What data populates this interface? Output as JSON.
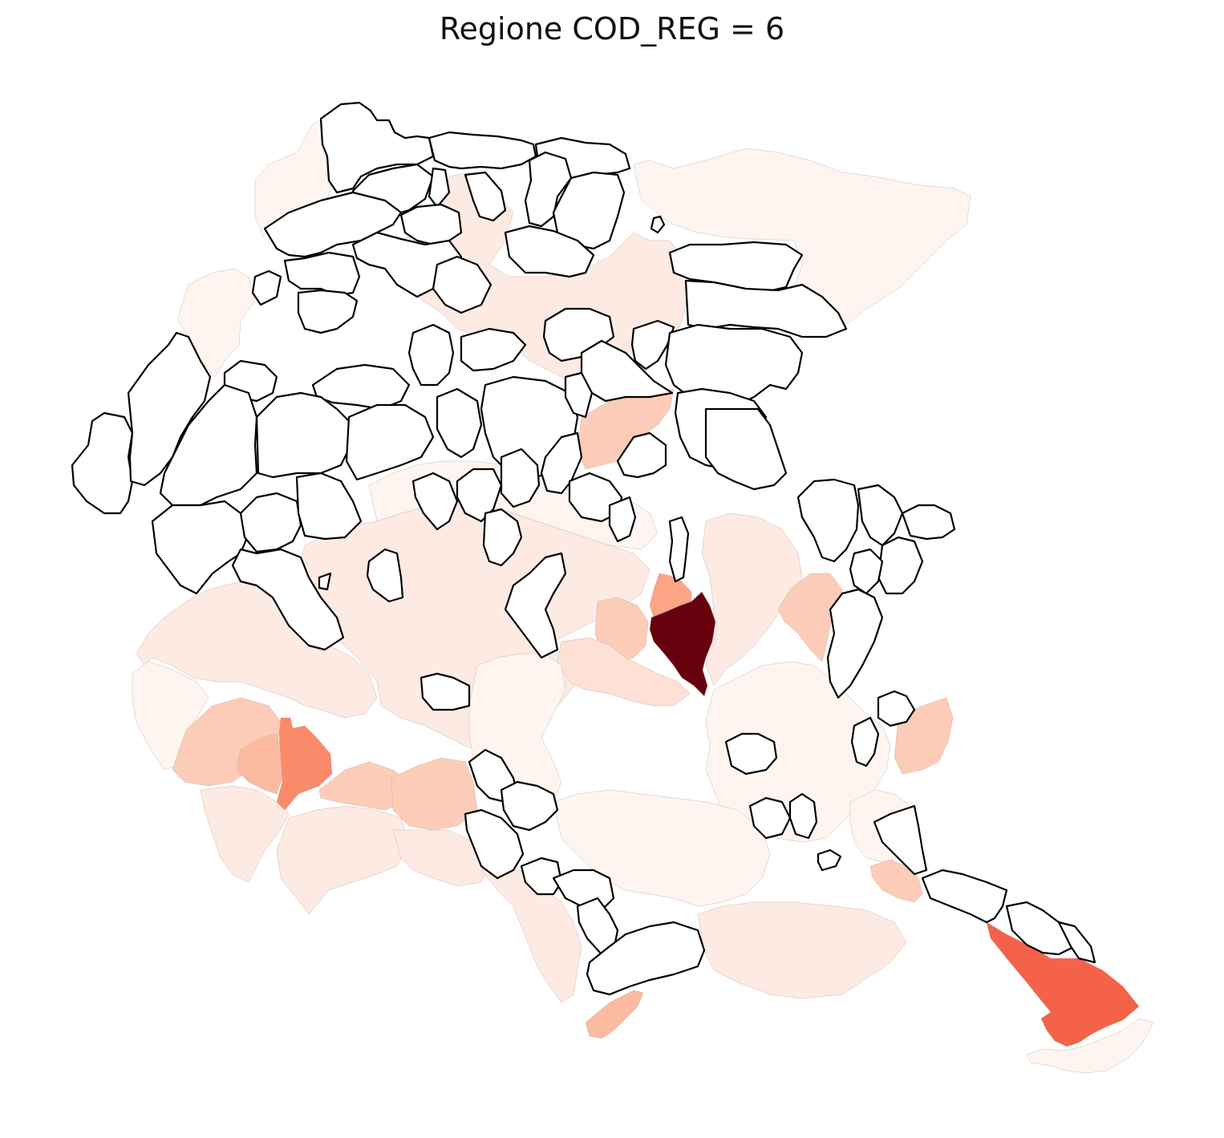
{
  "title": "Regione COD_REG = 6",
  "colormap": "Reds",
  "no_data_style": {
    "fill": "#ffffff",
    "stroke": "#000000"
  },
  "legend": null,
  "axes_visible": false,
  "levels": {
    "very_low": "#fff5f0",
    "low": "#fdeae2",
    "low_mid": "#fde1d5",
    "mid": "#fcccb8",
    "mid_high": "#fcbba1",
    "salmon": "#fca486",
    "orange_red": "#fb8a6a",
    "red": "#f5624a",
    "max": "#67000d"
  }
}
